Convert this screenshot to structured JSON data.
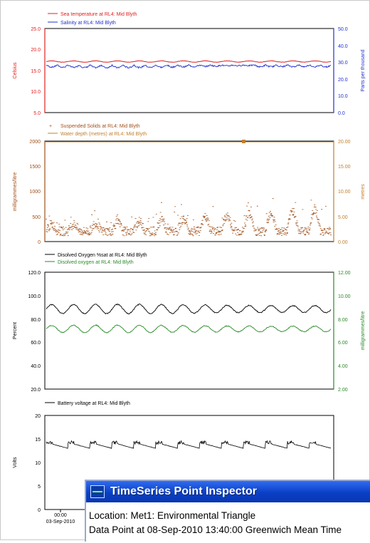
{
  "charts": {
    "panel1": {
      "legend": [
        "Sea temperature at RL4:  Mid Blyth",
        "Salinity at RL4:  Mid Blyth"
      ],
      "left_ticks": [
        "25.0",
        "20.0",
        "15.0",
        "10.0",
        "5.0"
      ],
      "right_ticks": [
        "50.0",
        "40.0",
        "30.0",
        "20.0",
        "10.0",
        "0.0"
      ],
      "ylabel_left": "Celsius",
      "ylabel_right": "Parts per thousand"
    },
    "panel2": {
      "legend": [
        "Suspended Solids at RL4:  Mid Blyth",
        "Water depth (metres) at RL4:  Mid Blyth"
      ],
      "left_ticks": [
        "2000",
        "1500",
        "1000",
        "500",
        "0"
      ],
      "right_ticks": [
        "20.00",
        "15.00",
        "10.00",
        "5.00",
        "0.00"
      ],
      "ylabel_left": "milligrammes/litre",
      "ylabel_right": "metres"
    },
    "panel3": {
      "legend": [
        "Disolved Oxygen %sat at RL4:  Mid Blyth",
        "Disolved oxygen at RL4:  Mid Blyth"
      ],
      "left_ticks": [
        "120.0",
        "100.0",
        "80.0",
        "60.0",
        "40.0",
        "20.0"
      ],
      "right_ticks": [
        "12.00",
        "10.00",
        "8.00",
        "6.00",
        "4.00",
        "2.00"
      ],
      "ylabel_left": "Percent",
      "ylabel_right": "milligrammes/litre"
    },
    "panel4": {
      "legend": [
        "Battery voltage at RL4:  Mid Blyth"
      ],
      "left_ticks": [
        "20",
        "15",
        "10",
        "5",
        "0"
      ],
      "ylabel_left": "Volts",
      "x_tick_time": "00:00",
      "x_tick_date": "03-Sep-2010"
    }
  },
  "chart_data": [
    {
      "type": "line",
      "series": [
        {
          "name": "Sea temperature at RL4:  Mid Blyth",
          "axis": "left",
          "color": "#e02020",
          "approx_level": 17.1
        },
        {
          "name": "Salinity at RL4:  Mid Blyth",
          "axis": "right",
          "color": "#2030d0",
          "approx_level": 29
        }
      ],
      "ylim_left": [
        5,
        25
      ],
      "ylim_right": [
        0,
        50
      ]
    },
    {
      "type": "scatter",
      "series": [
        {
          "name": "Suspended Solids at RL4:  Mid Blyth",
          "axis": "left",
          "color": "#a0501a",
          "typical_range": [
            50,
            1700
          ]
        },
        {
          "name": "Water depth (metres) at RL4:  Mid Blyth",
          "axis": "right",
          "color": "#c08030",
          "approx_level": 20
        }
      ],
      "ylim_left": [
        0,
        2000
      ],
      "ylim_right": [
        0,
        20
      ]
    },
    {
      "type": "line",
      "series": [
        {
          "name": "Disolved Oxygen %sat at RL4:  Mid Blyth",
          "axis": "left",
          "color": "#000000",
          "range": [
            82,
            93
          ]
        },
        {
          "name": "Disolved oxygen at RL4:  Mid Blyth",
          "axis": "right",
          "color": "#2a8a2a",
          "range": [
            6.7,
            7.5
          ]
        }
      ],
      "ylim_left": [
        20,
        120
      ],
      "ylim_right": [
        2,
        12
      ]
    },
    {
      "type": "line",
      "series": [
        {
          "name": "Battery voltage at RL4:  Mid Blyth",
          "axis": "left",
          "color": "#000000",
          "range": [
            12.8,
            14.5
          ]
        }
      ],
      "ylim_left": [
        0,
        20
      ]
    }
  ],
  "inspector": {
    "title": "TimeSeries Point Inspector",
    "location": "Location: Met1: Environmental Triangle",
    "data_point": "Data Point at 08-Sep-2010 13:40:00 Greenwich Mean Time"
  },
  "colors": {
    "temperature": "#e02020",
    "salinity": "#2030d0",
    "suspended_solids": "#a0501a",
    "water_depth": "#c08030",
    "oxygen_sat": "#000000",
    "oxygen": "#2a8a2a",
    "battery": "#000000",
    "inspector_titlebar": "#0a3fc6"
  }
}
